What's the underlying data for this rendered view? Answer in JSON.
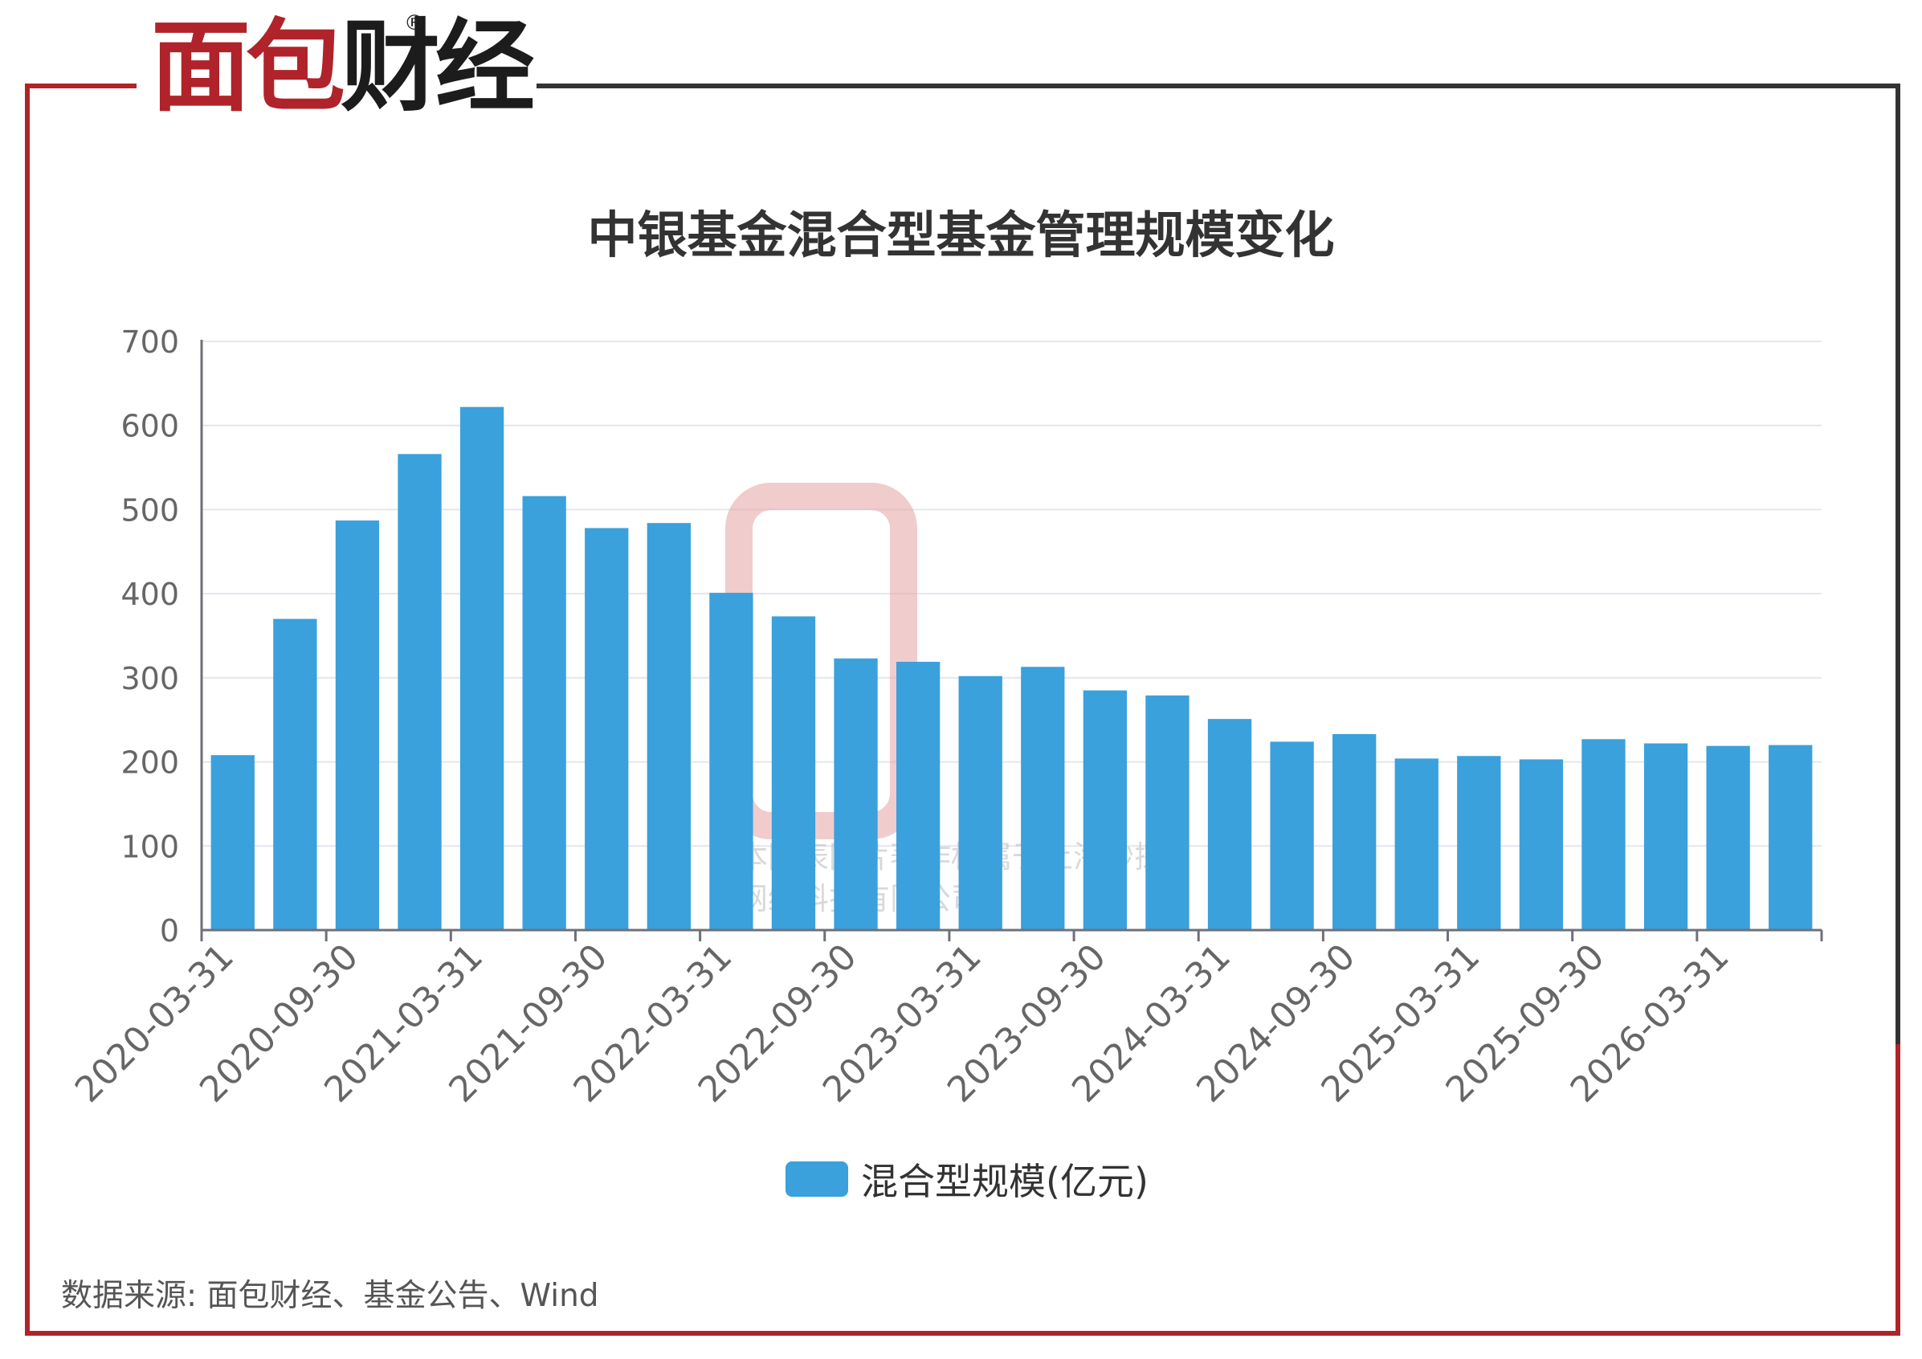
{
  "brand": {
    "logo_red": "面包",
    "logo_dark": "财经",
    "registered": "®"
  },
  "title": "中银基金混合型基金管理规模变化",
  "source": "数据来源: 面包财经、基金公告、Wind",
  "colors": {
    "bar": "#3aa1dc",
    "frame_red": "#b0232a",
    "frame_dark": "#333333"
  },
  "chart_data": {
    "type": "bar",
    "title": "中银基金混合型基金管理规模变化",
    "categories": [
      "2020-03-31",
      "2020-06-30",
      "2020-09-30",
      "2020-12-31",
      "2021-03-31",
      "2021-06-30",
      "2021-09-30",
      "2021-12-31",
      "2022-03-31",
      "2022-06-30",
      "2022-09-30",
      "2022-12-31",
      "2023-03-31",
      "2023-06-30",
      "2023-09-30",
      "2023-12-31",
      "2024-03-31",
      "2024-06-30",
      "2024-09-30",
      "2024-12-31",
      "2025-03-31",
      "2025-06-30",
      "2025-09-30",
      "2025-12-31",
      "2026-03-31",
      "2026-06-30"
    ],
    "tick_labels": [
      "2020-03-31",
      "2020-09-30",
      "2021-03-31",
      "2021-09-30",
      "2022-03-31",
      "2022-09-30",
      "2023-03-31",
      "2023-09-30",
      "2024-03-31",
      "2024-09-30",
      "2025-03-31",
      "2025-09-30",
      "2026-03-31"
    ],
    "series": [
      {
        "name": "混合型规模(亿元)",
        "values": [
          208,
          370,
          487,
          566,
          622,
          516,
          478,
          484,
          401,
          373,
          323,
          319,
          302,
          313,
          285,
          279,
          251,
          224,
          233,
          204,
          207,
          203,
          227,
          222,
          219,
          220
        ]
      }
    ],
    "y_ticks": [
      0,
      100,
      200,
      300,
      400,
      500,
      600,
      700
    ],
    "ylim": [
      0,
      700
    ],
    "grid": true,
    "legend_position": "bottom"
  },
  "watermark": {
    "line1": "本图表图片著作权属于上海妙探",
    "line2": "网络科技有限公司"
  }
}
